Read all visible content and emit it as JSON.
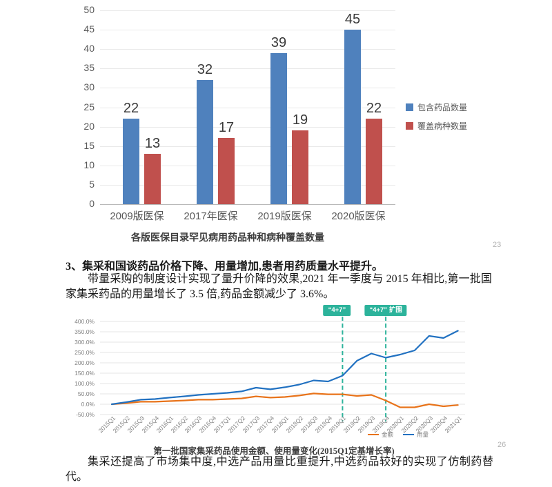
{
  "page_numbers": [
    "23",
    "26"
  ],
  "text": {
    "heading": "3、集采和国谈药品价格下降、用量增加,患者用药质量水平提升。",
    "paragraph1": "带量采购的制度设计实现了量升价降的效果,2021 年一季度与 2015 年相比,第一批国家集采药品的用量增长了 3.5 倍,药品金额减少了 3.6%。",
    "paragraph2": "集采还提高了市场集中度,中选产品用量比重提升,中选药品较好的实现了仿制药替代。"
  },
  "chart_data": [
    {
      "type": "bar",
      "title": "各版医保目录罕见病用药品种和病种覆盖数量",
      "categories": [
        "2009版医保",
        "2017年医保",
        "2019版医保",
        "2020版医保"
      ],
      "series": [
        {
          "name": "包含药品数量",
          "color": "#4F81BD",
          "values": [
            22,
            32,
            39,
            45
          ]
        },
        {
          "name": "覆盖病种数量",
          "color": "#C0504D",
          "values": [
            13,
            17,
            19,
            22
          ]
        }
      ],
      "xlabel": "",
      "ylabel": "",
      "ylim": [
        0,
        50
      ],
      "ytick_step": 5,
      "grid": true,
      "legend_position": "right"
    },
    {
      "type": "line",
      "title": "第一批国家集采药品使用金额、使用量变化(2015Q1定基增长率)",
      "x": [
        "2015Q1",
        "2015Q2",
        "2015Q3",
        "2015Q4",
        "2016Q1",
        "2016Q2",
        "2016Q3",
        "2016Q4",
        "2017Q1",
        "2017Q2",
        "2017Q3",
        "2017Q4",
        "2018Q1",
        "2018Q2",
        "2018Q3",
        "2018Q4",
        "2019Q1",
        "2019Q2",
        "2019Q3",
        "2019Q4",
        "2020Q1",
        "2020Q2",
        "2020Q3",
        "2020Q4",
        "2021Q1"
      ],
      "series": [
        {
          "name": "金额",
          "color": "#E8731A",
          "values": [
            0,
            5,
            12,
            12,
            15,
            18,
            22,
            22,
            25,
            28,
            38,
            32,
            35,
            42,
            52,
            48,
            48,
            40,
            45,
            18,
            -15,
            -15,
            0,
            -10,
            -4
          ]
        },
        {
          "name": "用量",
          "color": "#2171C1",
          "values": [
            0,
            10,
            22,
            25,
            32,
            38,
            45,
            50,
            55,
            62,
            80,
            72,
            82,
            95,
            115,
            110,
            138,
            210,
            245,
            225,
            240,
            260,
            330,
            320,
            355
          ]
        }
      ],
      "unit": "%",
      "ylim": [
        -50,
        400
      ],
      "ytick_step": 50,
      "grid": true,
      "legend_position": "bottom",
      "annotation_color": "#2CB39B",
      "annotations": [
        {
          "label": "“4+7”",
          "x": "2019Q1"
        },
        {
          "label": "“4+7” 扩围",
          "x": "2019Q4"
        }
      ]
    }
  ]
}
